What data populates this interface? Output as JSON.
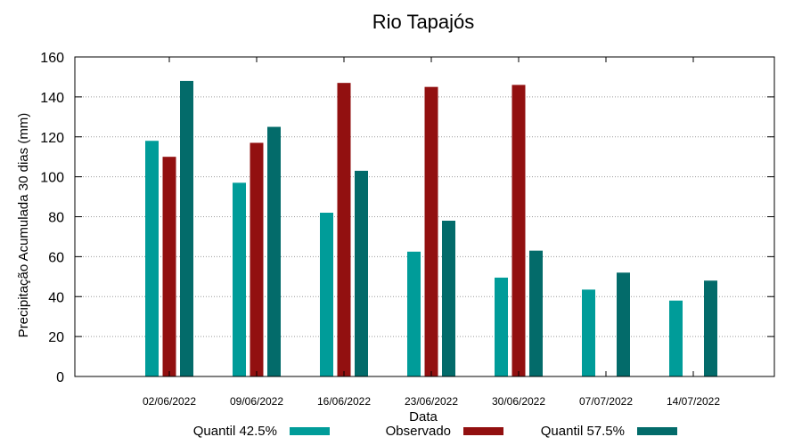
{
  "chart_data": {
    "type": "bar",
    "title": "Rio Tapajós",
    "xlabel": "Data",
    "ylabel": "Precipitação Acumulada 30 dias (mm)",
    "ylim": [
      0,
      160
    ],
    "yticks": [
      0,
      20,
      40,
      60,
      80,
      100,
      120,
      140,
      160
    ],
    "grid": true,
    "legend_position": "bottom",
    "categories": [
      "02/06/2022",
      "09/06/2022",
      "16/06/2022",
      "23/06/2022",
      "30/06/2022",
      "07/07/2022",
      "14/07/2022"
    ],
    "series": [
      {
        "name": "Quantil 42.5%",
        "color": "#009c99",
        "values": [
          118,
          97,
          82,
          62.5,
          49.5,
          43.5,
          38
        ]
      },
      {
        "name": "Observado",
        "color": "#921010",
        "values": [
          110,
          117,
          147,
          145,
          146,
          null,
          null
        ]
      },
      {
        "name": "Quantil 57.5%",
        "color": "#036b6a",
        "values": [
          148,
          125,
          103,
          78,
          63,
          52,
          48
        ]
      }
    ]
  }
}
